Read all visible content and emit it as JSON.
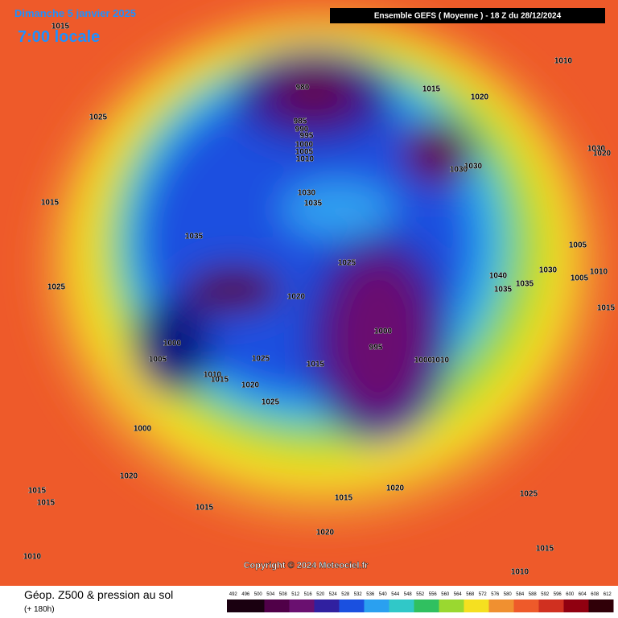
{
  "header": {
    "date": "Dimanche 5 janvier 2025",
    "local_time": "7:00 locale",
    "run": "Ensemble GEFS  ( Moyenne )  -  18 Z du 28/12/2024"
  },
  "copyright": "Copyright © 2024 Meteociel.fr",
  "footer": {
    "title": "Géop. Z500 & pression au sol",
    "lead": "(+ 180h)"
  },
  "scale": [
    492,
    496,
    500,
    504,
    508,
    512,
    516,
    520,
    524,
    528,
    532,
    536,
    540,
    544,
    548,
    552,
    556,
    560,
    564,
    568,
    572,
    576,
    580,
    584,
    588,
    592,
    596,
    600,
    604,
    608,
    612
  ],
  "isobar_labels": [
    1015,
    1025,
    1015,
    1025,
    1035,
    980,
    985,
    990,
    995,
    1000,
    1005,
    1010,
    1015,
    1020,
    1030,
    1030,
    1030,
    1035,
    1010,
    1030,
    1020,
    1025,
    1020,
    1040,
    1035,
    1035,
    1030,
    1005,
    1005,
    1010,
    1015,
    1000,
    1005,
    1025,
    1015,
    1000,
    995,
    1000,
    1010,
    1010,
    1015,
    1020,
    1025,
    1000,
    1020,
    1015,
    1015,
    1015,
    1015,
    1020,
    1025,
    1020,
    1015,
    1010,
    1010
  ]
}
